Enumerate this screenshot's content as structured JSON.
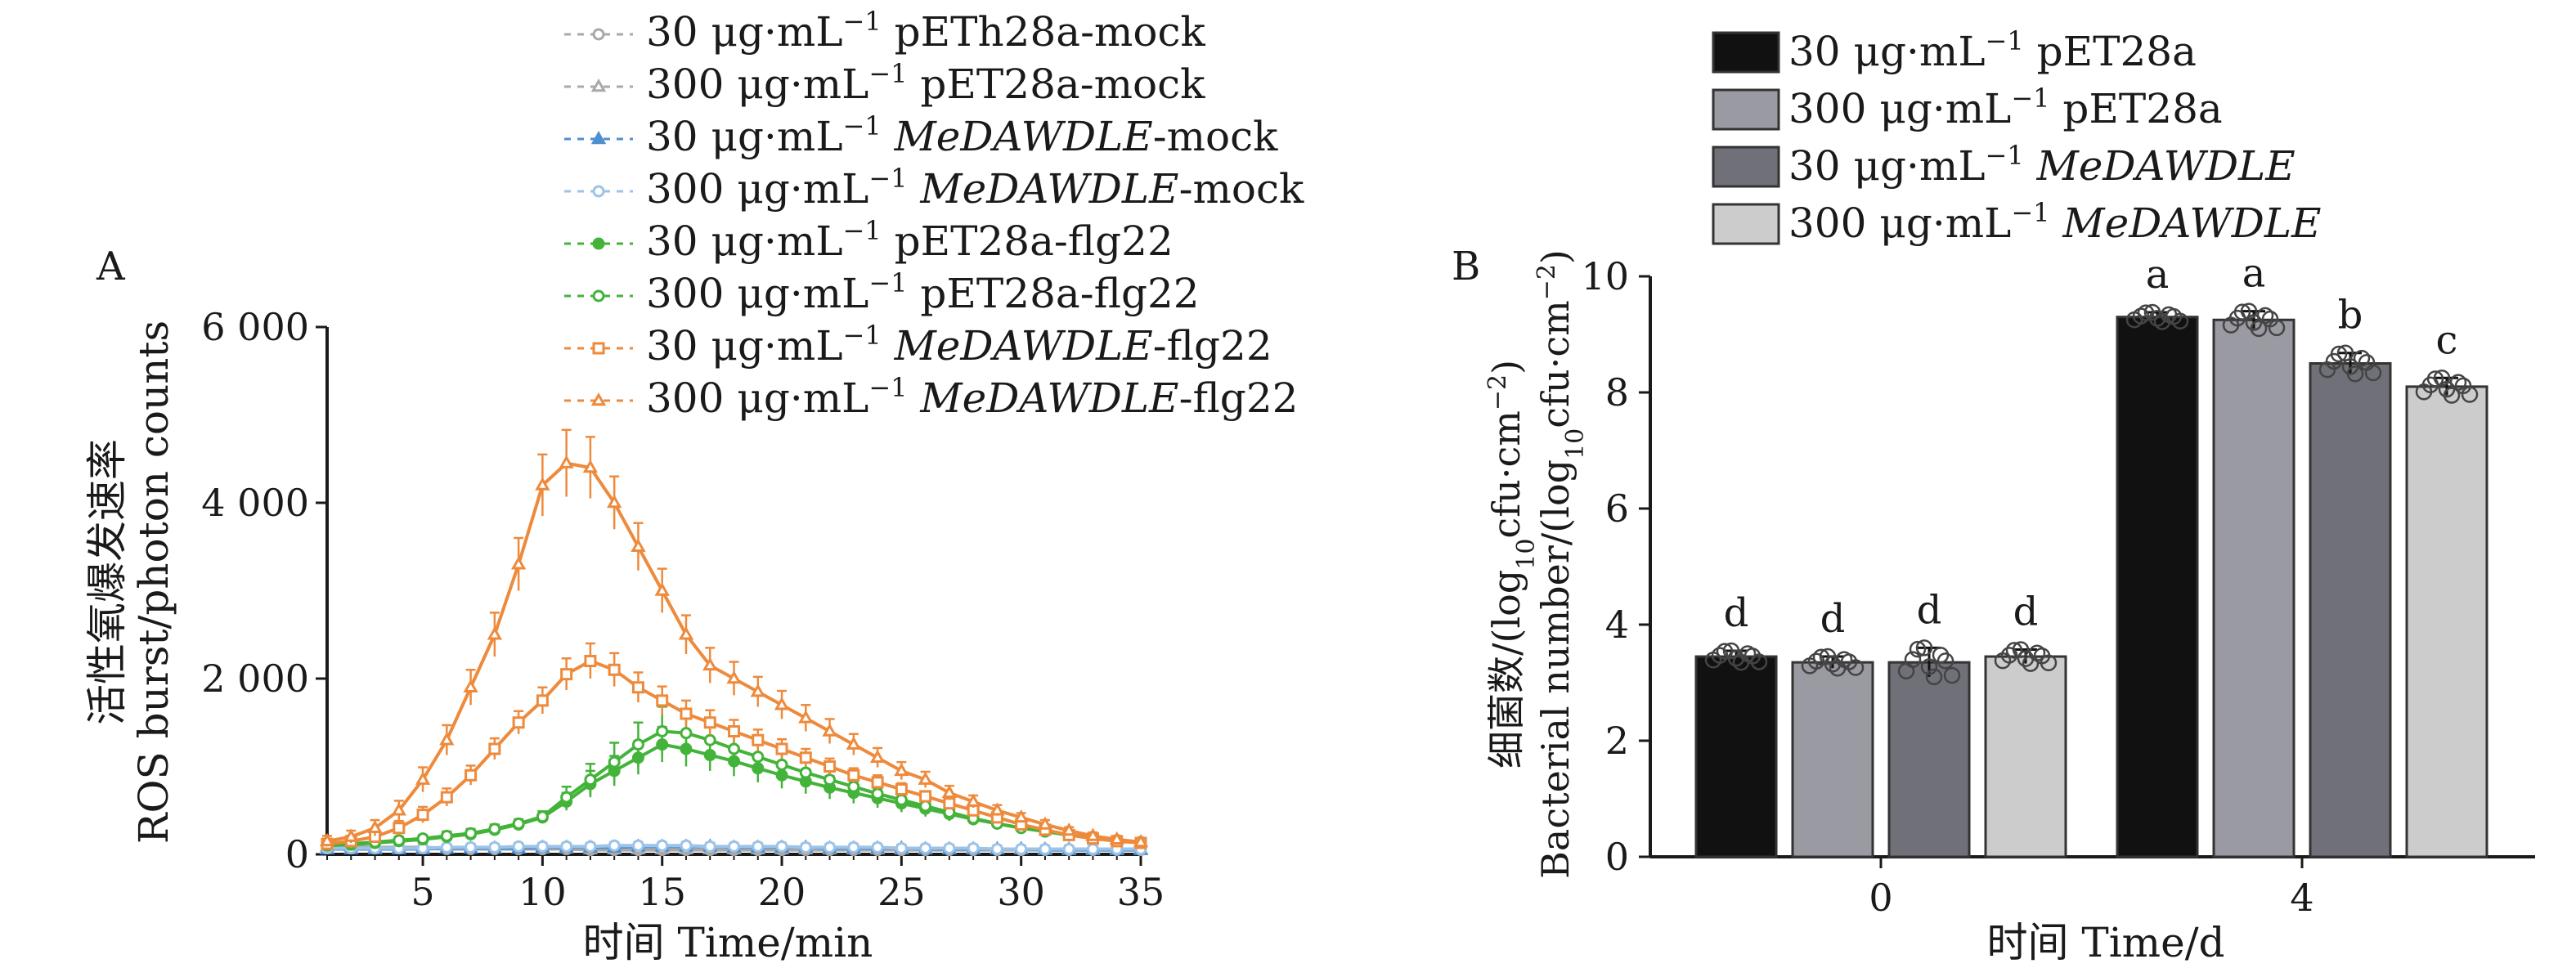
{
  "colors": {
    "axis": "#1a1a1a",
    "mock_gray": "#a9a9a9",
    "mock_blue": "#4f8fd0",
    "mock_lightblue": "#9cc3e8",
    "green": "#43b33a",
    "orange": "#ee8a3c",
    "bar_black": "#111111",
    "bar_darkgray": "#9a9aa2",
    "bar_midgray": "#707078",
    "bar_lightgray": "#cccccc"
  },
  "chart_data": [
    {
      "type": "line",
      "panel_label": "A",
      "ylabel_zh": "活性氧爆发速率",
      "ylabel_en": "ROS burst/photon counts",
      "xlabel": "时间 Time/min",
      "xlim": [
        1,
        35
      ],
      "ylim": [
        0,
        6000
      ],
      "xticks": [
        5,
        10,
        15,
        20,
        25,
        30,
        35
      ],
      "yticks": [
        0,
        2000,
        4000,
        6000
      ],
      "ytick_labels": [
        "0",
        "2 000",
        "4 000",
        "6 000"
      ],
      "grid": false,
      "legend_position": "top-center",
      "x": [
        1,
        2,
        3,
        4,
        5,
        6,
        7,
        8,
        9,
        10,
        11,
        12,
        13,
        14,
        15,
        16,
        17,
        18,
        19,
        20,
        21,
        22,
        23,
        24,
        25,
        26,
        27,
        28,
        29,
        30,
        31,
        32,
        33,
        34,
        35
      ],
      "series": [
        {
          "conc": "30",
          "unit_suffix": "−1",
          "label_main": "pETh28a-mock",
          "italic": false,
          "tail": "",
          "marker": "circle",
          "color": "#a9a9a9",
          "values": [
            80,
            80,
            70,
            70,
            70,
            60,
            60,
            60,
            60,
            60,
            60,
            50,
            50,
            50,
            50,
            50,
            50,
            50,
            50,
            50,
            50,
            50,
            50,
            50,
            50,
            50,
            50,
            50,
            50,
            50,
            50,
            50,
            50,
            50,
            50
          ],
          "errors": [
            40,
            40,
            40,
            40,
            40,
            40,
            40,
            40,
            40,
            40,
            40,
            40,
            40,
            40,
            40,
            40,
            40,
            40,
            40,
            40,
            40,
            40,
            40,
            40,
            40,
            40,
            40,
            40,
            40,
            40,
            40,
            40,
            40,
            40,
            40
          ]
        },
        {
          "conc": "300",
          "unit_suffix": "−1",
          "label_main": "pET28a-mock",
          "italic": false,
          "tail": "",
          "marker": "triangle",
          "color": "#a9a9a9",
          "values": [
            90,
            90,
            80,
            80,
            80,
            70,
            70,
            70,
            70,
            70,
            70,
            60,
            60,
            60,
            60,
            60,
            60,
            60,
            60,
            60,
            60,
            60,
            60,
            60,
            60,
            60,
            60,
            60,
            60,
            60,
            60,
            60,
            60,
            60,
            60
          ],
          "errors": [
            40,
            40,
            40,
            40,
            40,
            40,
            40,
            40,
            40,
            40,
            40,
            40,
            40,
            40,
            40,
            40,
            40,
            40,
            40,
            40,
            40,
            40,
            40,
            40,
            40,
            40,
            40,
            40,
            40,
            40,
            40,
            40,
            40,
            40,
            40
          ]
        },
        {
          "conc": "30",
          "unit_suffix": "−1",
          "label_main": "MeDAWDLE",
          "italic": true,
          "tail": "-mock",
          "marker": "triangle",
          "color": "#4f8fd0",
          "values": [
            60,
            60,
            60,
            60,
            60,
            70,
            70,
            70,
            70,
            80,
            80,
            80,
            80,
            90,
            90,
            90,
            90,
            80,
            80,
            80,
            80,
            70,
            70,
            70,
            70,
            60,
            60,
            60,
            60,
            60,
            50,
            50,
            50,
            50,
            50
          ],
          "errors": [
            40,
            40,
            40,
            40,
            40,
            40,
            40,
            40,
            40,
            40,
            40,
            40,
            40,
            40,
            40,
            40,
            40,
            40,
            40,
            40,
            40,
            40,
            40,
            40,
            40,
            40,
            40,
            40,
            40,
            40,
            40,
            40,
            40,
            40,
            40
          ]
        },
        {
          "conc": "300",
          "unit_suffix": "−1",
          "label_main": "MeDAWDLE",
          "italic": true,
          "tail": "-mock",
          "marker": "circle",
          "color": "#9cc3e8",
          "values": [
            70,
            70,
            70,
            70,
            70,
            80,
            80,
            80,
            90,
            90,
            90,
            90,
            100,
            100,
            100,
            100,
            90,
            90,
            90,
            90,
            80,
            80,
            80,
            80,
            70,
            70,
            70,
            70,
            60,
            60,
            60,
            60,
            60,
            60,
            60
          ],
          "errors": [
            40,
            40,
            40,
            40,
            40,
            40,
            40,
            40,
            40,
            40,
            40,
            40,
            40,
            40,
            40,
            40,
            40,
            40,
            40,
            40,
            40,
            40,
            40,
            40,
            40,
            40,
            40,
            40,
            40,
            40,
            40,
            40,
            40,
            40,
            40
          ]
        },
        {
          "conc": "30",
          "unit_suffix": "−1",
          "label_main": "pET28a-flg22",
          "italic": false,
          "tail": "",
          "marker": "circle",
          "color": "#43b33a",
          "values": [
            100,
            110,
            130,
            150,
            170,
            200,
            230,
            280,
            340,
            420,
            600,
            800,
            950,
            1100,
            1250,
            1200,
            1130,
            1060,
            980,
            900,
            830,
            760,
            700,
            640,
            580,
            520,
            460,
            400,
            350,
            300,
            260,
            220,
            190,
            160,
            140
          ],
          "errors": [
            40,
            40,
            40,
            40,
            40,
            50,
            50,
            50,
            50,
            60,
            100,
            150,
            170,
            190,
            200,
            200,
            180,
            170,
            160,
            150,
            140,
            130,
            120,
            110,
            100,
            90,
            80,
            70,
            60,
            60,
            50,
            50,
            40,
            40,
            40
          ]
        },
        {
          "conc": "300",
          "unit_suffix": "−1",
          "label_main": "pET28a-flg22",
          "italic": false,
          "tail": "",
          "marker": "circle",
          "color": "#43b33a",
          "values": [
            110,
            120,
            140,
            160,
            180,
            210,
            240,
            290,
            350,
            430,
            650,
            850,
            1050,
            1250,
            1400,
            1380,
            1300,
            1200,
            1110,
            1020,
            930,
            850,
            770,
            690,
            620,
            550,
            480,
            410,
            350,
            300,
            260,
            220,
            190,
            160,
            140
          ],
          "errors": [
            40,
            40,
            40,
            40,
            40,
            50,
            50,
            50,
            50,
            60,
            120,
            180,
            220,
            250,
            280,
            260,
            240,
            220,
            200,
            180,
            160,
            150,
            140,
            120,
            110,
            100,
            90,
            80,
            70,
            60,
            50,
            50,
            40,
            40,
            40
          ]
        },
        {
          "conc": "30",
          "unit_suffix": "−1",
          "label_main": "MeDAWDLE",
          "italic": true,
          "tail": "-flg22",
          "marker": "square",
          "color": "#ee8a3c",
          "values": [
            120,
            150,
            200,
            300,
            450,
            650,
            900,
            1200,
            1500,
            1750,
            2050,
            2200,
            2100,
            1900,
            1750,
            1600,
            1500,
            1400,
            1300,
            1200,
            1100,
            1000,
            900,
            820,
            740,
            660,
            580,
            500,
            420,
            340,
            280,
            220,
            180,
            150,
            130
          ],
          "errors": [
            50,
            60,
            70,
            80,
            90,
            100,
            110,
            120,
            130,
            150,
            180,
            200,
            190,
            170,
            160,
            150,
            140,
            130,
            120,
            110,
            100,
            90,
            80,
            80,
            70,
            60,
            60,
            50,
            50,
            40,
            40,
            40,
            40,
            40,
            40
          ]
        },
        {
          "conc": "300",
          "unit_suffix": "−1",
          "label_main": "MeDAWDLE",
          "italic": true,
          "tail": "-flg22",
          "marker": "triangle",
          "color": "#ee8a3c",
          "values": [
            150,
            200,
            300,
            500,
            850,
            1300,
            1900,
            2500,
            3300,
            4200,
            4450,
            4400,
            4000,
            3500,
            3000,
            2500,
            2150,
            2000,
            1850,
            1700,
            1550,
            1400,
            1250,
            1100,
            950,
            850,
            700,
            600,
            500,
            420,
            340,
            270,
            210,
            170,
            140
          ],
          "errors": [
            60,
            70,
            90,
            110,
            140,
            170,
            200,
            250,
            300,
            350,
            380,
            350,
            300,
            270,
            250,
            220,
            200,
            190,
            170,
            160,
            150,
            140,
            120,
            110,
            100,
            90,
            80,
            70,
            60,
            50,
            50,
            40,
            40,
            40,
            40
          ]
        }
      ]
    },
    {
      "type": "bar",
      "panel_label": "B",
      "ylabel_zh": "细菌数",
      "ylabel_en": "Bacterial number",
      "ylabel_unit": "log10cfu·cm−2",
      "xlabel": "时间 Time/d",
      "categories": [
        "0",
        "4"
      ],
      "ylim": [
        0,
        10
      ],
      "yticks": [
        0,
        2,
        4,
        6,
        8,
        10
      ],
      "grid": false,
      "legend_position": "top",
      "series": [
        {
          "conc": "30",
          "label": "pET28a",
          "italic": false,
          "color": "#111111",
          "values": [
            3.45,
            9.3
          ],
          "errors": [
            0.1,
            0.08
          ],
          "letters": [
            "d",
            "a"
          ]
        },
        {
          "conc": "300",
          "label": "pET28a",
          "italic": false,
          "color": "#9a9aa2",
          "values": [
            3.35,
            9.25
          ],
          "errors": [
            0.1,
            0.15
          ],
          "letters": [
            "d",
            "a"
          ]
        },
        {
          "conc": "30",
          "label": "MeDAWDLE",
          "italic": true,
          "color": "#707078",
          "values": [
            3.35,
            8.5
          ],
          "errors": [
            0.25,
            0.18
          ],
          "letters": [
            "d",
            "b"
          ]
        },
        {
          "conc": "300",
          "label": "MeDAWDLE",
          "italic": true,
          "color": "#cccccc",
          "values": [
            3.45,
            8.1
          ],
          "errors": [
            0.12,
            0.15
          ],
          "letters": [
            "d",
            "c"
          ]
        }
      ]
    }
  ]
}
